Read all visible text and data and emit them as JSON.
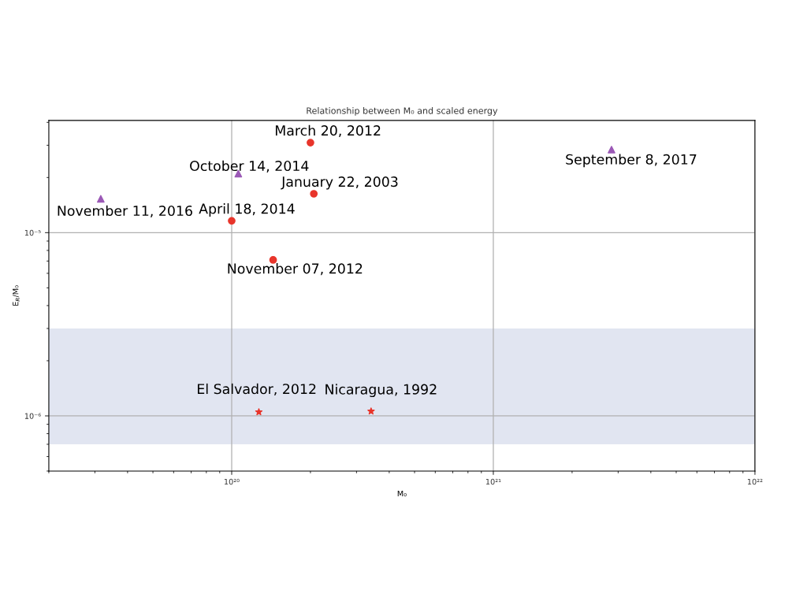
{
  "chart_data": {
    "type": "scatter",
    "title": "Relationship between M₀ and scaled energy",
    "xlabel": "M₀",
    "ylabel": "E$_{R}$/M₀",
    "log": "xy",
    "grid": true,
    "xlim": [
      2e+19,
      1e+22
    ],
    "xticks": [
      {
        "value": 1e+20,
        "label": "10²⁰"
      },
      {
        "value": 1e+21,
        "label": "10²¹"
      },
      {
        "value": 1e+22,
        "label": "10²²"
      }
    ],
    "ylim": [
      5e-07,
      4.1e-05
    ],
    "yticks": [
      {
        "value": 1e-06,
        "label": "10⁻⁶"
      },
      {
        "value": 1e-05,
        "label": "10⁻⁵"
      }
    ],
    "bands": [
      {
        "axis": "y",
        "from": 7e-07,
        "to": 3e-06,
        "color": "#e1e5f1"
      }
    ],
    "series": [
      {
        "color": "#e8352b",
        "marker": "circle",
        "x": [
          2e+20,
          2.06e+20,
          1e+20,
          1.44e+20
        ],
        "values": [
          3.1e-05,
          1.63e-05,
          1.16e-05,
          7.1e-06
        ]
      },
      {
        "color": "#9b59b6",
        "marker": "triangle",
        "x": [
          2.83e+21,
          1.06e+20,
          3.16e+19
        ],
        "values": [
          2.84e-05,
          2.1e-05,
          1.53e-05
        ]
      },
      {
        "color": "#e8352b",
        "marker": "star",
        "x": [
          1.27e+20,
          3.41e+20
        ],
        "values": [
          1.05e-06,
          1.06e-06
        ]
      }
    ],
    "annotations": [
      {
        "text": "March 20, 2012",
        "x": 2e+20,
        "y": 3.1e-05
      },
      {
        "text": "September 8, 2017",
        "x": 2.83e+21,
        "y": 2.84e-05
      },
      {
        "text": "October 14, 2014",
        "x": 1.06e+20,
        "y": 2.1e-05
      },
      {
        "text": "January 22, 2003",
        "x": 2.06e+20,
        "y": 1.63e-05
      },
      {
        "text": "November 11, 2016",
        "x": 3.16e+19,
        "y": 1.53e-05
      },
      {
        "text": "April 18, 2014",
        "x": 1e+20,
        "y": 1.16e-05
      },
      {
        "text": "November 07, 2012",
        "x": 1.44e+20,
        "y": 7.1e-06
      },
      {
        "text": "El Salvador, 2012",
        "x": 1.27e+20,
        "y": 1.05e-06
      },
      {
        "text": "Nicaragua, 1992",
        "x": 3.41e+20,
        "y": 1.06e-06
      }
    ]
  }
}
